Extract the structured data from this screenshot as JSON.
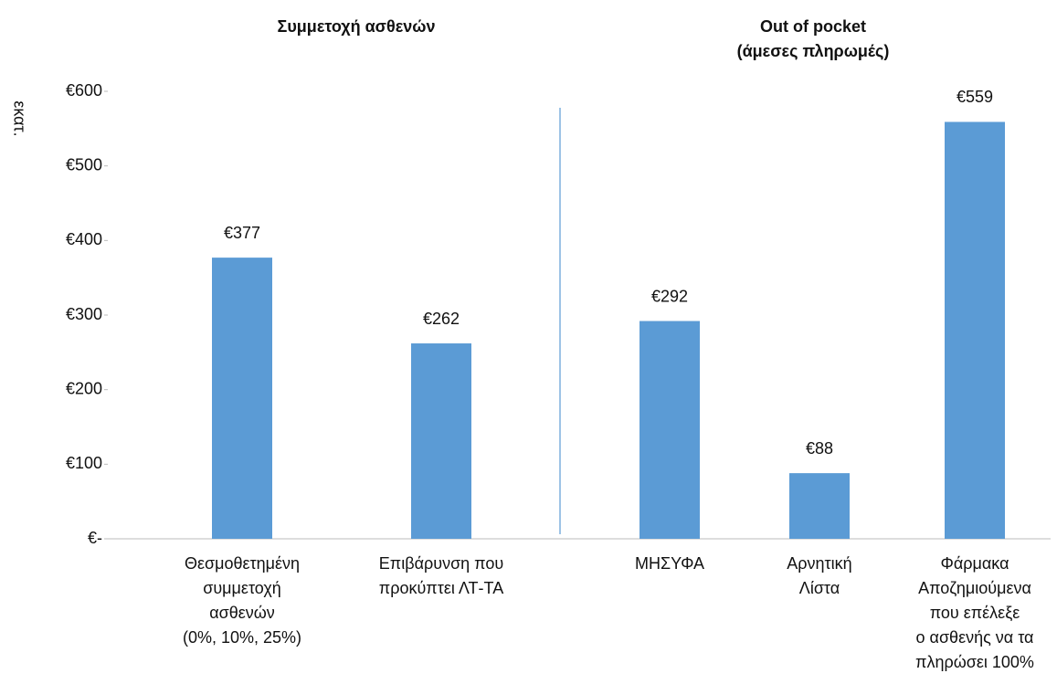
{
  "chart_data": {
    "type": "bar",
    "group_titles": [
      [
        "Συμμετοχή ασθενών"
      ],
      [
        "Out of pocket",
        "(άμεσες πληρωμές)"
      ]
    ],
    "ylabel": "εκατ.",
    "categories": [
      [
        "Θεσμοθετημένη",
        "συμμετοχή",
        "ασθενών",
        "(0%, 10%, 25%)"
      ],
      [
        "Επιβάρυνση που",
        "προκύπτει ΛΤ-ΤΑ"
      ],
      [
        "ΜΗΣΥΦΑ"
      ],
      [
        "Αρνητική",
        "Λίστα"
      ],
      [
        "Φάρμακα",
        "Αποζημιούμενα",
        "που επέλεξε",
        "ο ασθενής να τα",
        "πληρώσει 100%"
      ]
    ],
    "values": [
      377,
      262,
      292,
      88,
      559
    ],
    "value_labels": [
      "€377",
      "€262",
      "€292",
      "€88",
      "€559"
    ],
    "color": "#5b9bd5",
    "ylim": [
      0,
      600
    ],
    "yticks": [
      {
        "value": 0,
        "label": "€-"
      },
      {
        "value": 100,
        "label": "€100"
      },
      {
        "value": 200,
        "label": "€200"
      },
      {
        "value": 300,
        "label": "€300"
      },
      {
        "value": 400,
        "label": "€400"
      },
      {
        "value": 500,
        "label": "€500"
      },
      {
        "value": 600,
        "label": "€600"
      }
    ],
    "grid": false
  }
}
